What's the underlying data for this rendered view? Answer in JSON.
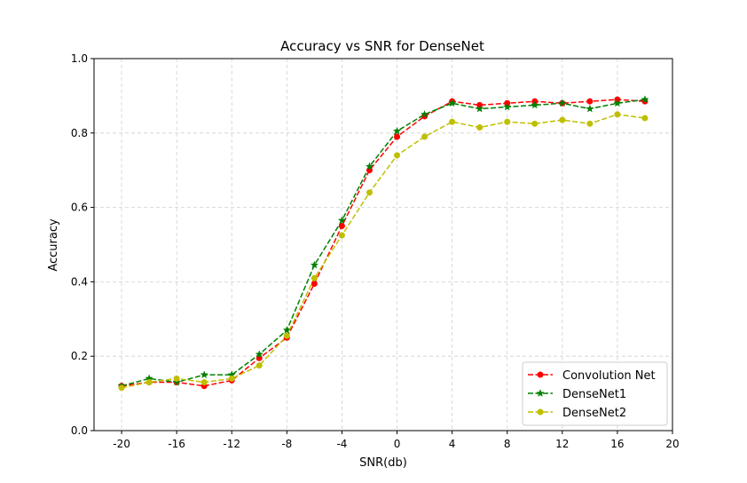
{
  "chart_data": {
    "type": "line",
    "title": "Accuracy vs SNR for DenseNet",
    "xlabel": "SNR(db)",
    "ylabel": "Accuracy",
    "xlim": [
      -22,
      20
    ],
    "ylim": [
      0.0,
      1.0
    ],
    "xticks": [
      -20,
      -16,
      -12,
      -8,
      -4,
      0,
      4,
      8,
      12,
      16,
      20
    ],
    "yticks": [
      0.0,
      0.2,
      0.4,
      0.6,
      0.8,
      1.0
    ],
    "xtick_labels": [
      "-20",
      "-16",
      "-12",
      "-8",
      "-4",
      "0",
      "4",
      "8",
      "12",
      "16",
      "20"
    ],
    "ytick_labels": [
      "0.0",
      "0.2",
      "0.4",
      "0.6",
      "0.8",
      "1.0"
    ],
    "grid": true,
    "legend_position": "lower-right",
    "x": [
      -20,
      -18,
      -16,
      -14,
      -12,
      -10,
      -8,
      -6,
      -4,
      -2,
      0,
      2,
      4,
      6,
      8,
      10,
      12,
      14,
      16,
      18
    ],
    "series": [
      {
        "name": "Convolution Net",
        "color": "#ff0000",
        "marker": "circle",
        "values": [
          0.12,
          0.13,
          0.13,
          0.12,
          0.135,
          0.195,
          0.25,
          0.395,
          0.55,
          0.7,
          0.79,
          0.845,
          0.885,
          0.875,
          0.88,
          0.885,
          0.88,
          0.885,
          0.89,
          0.885
        ]
      },
      {
        "name": "DenseNet1",
        "color": "#008000",
        "marker": "star",
        "values": [
          0.12,
          0.14,
          0.13,
          0.15,
          0.15,
          0.205,
          0.27,
          0.445,
          0.565,
          0.71,
          0.805,
          0.85,
          0.88,
          0.865,
          0.87,
          0.875,
          0.88,
          0.865,
          0.88,
          0.89
        ]
      },
      {
        "name": "DenseNet2",
        "color": "#bfbf00",
        "marker": "circle",
        "values": [
          0.115,
          0.13,
          0.14,
          0.13,
          0.14,
          0.175,
          0.255,
          0.41,
          0.525,
          0.64,
          0.74,
          0.79,
          0.83,
          0.815,
          0.83,
          0.825,
          0.835,
          0.825,
          0.85,
          0.84
        ]
      }
    ]
  }
}
